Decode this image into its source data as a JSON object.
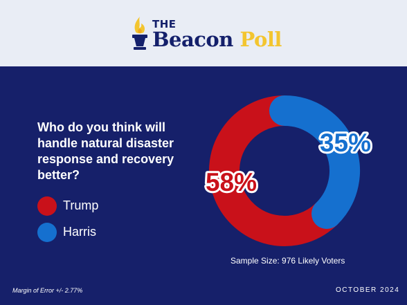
{
  "header": {
    "logo_the": "THE",
    "logo_beacon": "Beacon",
    "logo_poll": "Poll"
  },
  "question": "Who do you think will handle natural disaster response and recovery better?",
  "chart_data": {
    "type": "pie",
    "style": "donut",
    "title": "Who do you think will handle natural disaster response and recovery better?",
    "categories": [
      "Trump",
      "Harris"
    ],
    "values": [
      58,
      35
    ],
    "unit": "%",
    "labels": [
      "58%",
      "35%"
    ],
    "colors": [
      "#c9111a",
      "#1570cf"
    ],
    "legend_placement": "left"
  },
  "legend": [
    {
      "label": "Trump",
      "color": "#c9111a"
    },
    {
      "label": "Harris",
      "color": "#1570cf"
    }
  ],
  "footer": {
    "sample": "Sample Size: 976 Likely Voters",
    "margin_of_error": "Margin of Error +/- 2.77%",
    "date": "OCTOBER 2024"
  },
  "colors": {
    "background": "#16206a",
    "header_bg": "#e9edf5",
    "brand_navy": "#14206b",
    "brand_gold": "#f3c530"
  }
}
